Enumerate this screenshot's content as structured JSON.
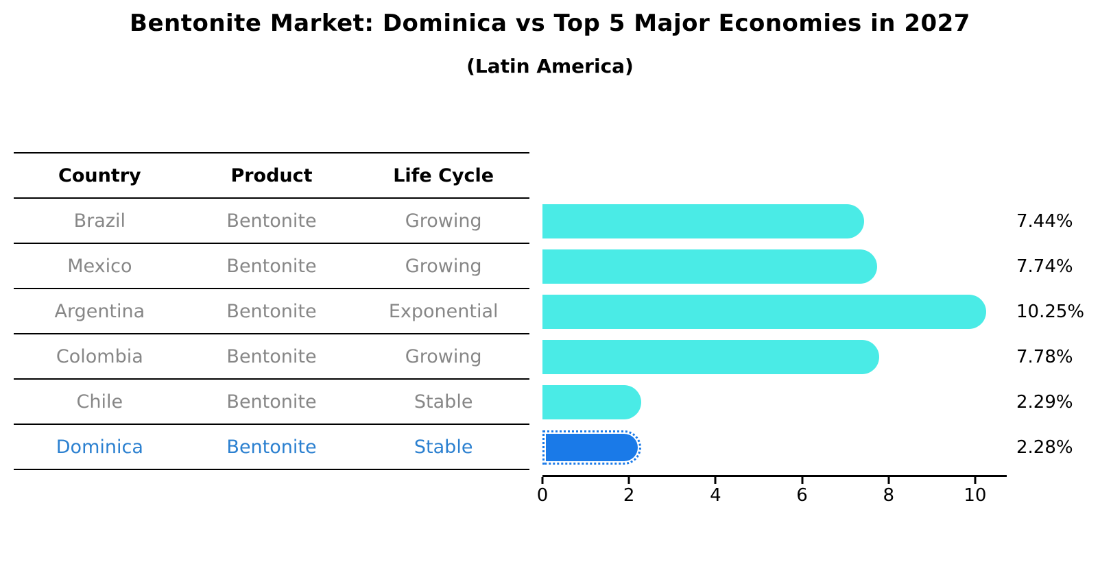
{
  "title": "Bentonite Market: Dominica vs Top 5 Major Economies in 2027",
  "subtitle": "(Latin America)",
  "table": {
    "headers": [
      "Country",
      "Product",
      "Life Cycle"
    ],
    "rows": [
      {
        "country": "Brazil",
        "product": "Bentonite",
        "life_cycle": "Growing",
        "highlighted": false
      },
      {
        "country": "Mexico",
        "product": "Bentonite",
        "life_cycle": "Growing",
        "highlighted": false
      },
      {
        "country": "Argentina",
        "product": "Bentonite",
        "life_cycle": "Exponential",
        "highlighted": false
      },
      {
        "country": "Colombia",
        "product": "Bentonite",
        "life_cycle": "Growing",
        "highlighted": false
      },
      {
        "country": "Chile",
        "product": "Bentonite",
        "life_cycle": "Stable",
        "highlighted": false
      },
      {
        "country": "Dominica",
        "product": "Bentonite",
        "life_cycle": "Stable",
        "highlighted": true
      }
    ]
  },
  "chart_data": {
    "type": "bar",
    "orientation": "horizontal",
    "title": "Bentonite Market: Dominica vs Top 5 Major Economies in 2027",
    "subtitle": "(Latin America)",
    "categories": [
      "Brazil",
      "Mexico",
      "Argentina",
      "Colombia",
      "Chile",
      "Dominica"
    ],
    "values": [
      7.44,
      7.74,
      10.25,
      7.78,
      2.29,
      2.28
    ],
    "value_labels": [
      "7.44%",
      "7.74%",
      "10.25%",
      "7.78%",
      "2.29%",
      "2.28%"
    ],
    "unit": "%",
    "xlim": [
      0,
      10.73
    ],
    "x_ticks": [
      0,
      2,
      4,
      6,
      8,
      10
    ],
    "grid": false,
    "legend": false,
    "bar_color": "#4aebe6",
    "highlight_color": "#1a7ae8",
    "highlight_index": 5,
    "highlight_text_color": "#2b80d0"
  }
}
